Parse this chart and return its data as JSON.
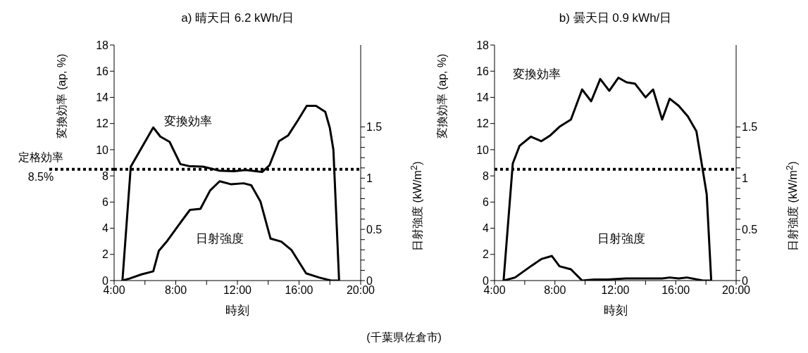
{
  "chart_data": [
    {
      "type": "line",
      "title": "a) 晴天日 6.2 kWh/日",
      "xlabel": "時刻",
      "ylabel": "変換効率 (ap, %)",
      "y2label": "日射強度 (kW/m$^{2}$)",
      "xlim": [
        4,
        20
      ],
      "xticks": [
        {
          "value": 4,
          "label": "4:00"
        },
        {
          "value": 6,
          "label": null
        },
        {
          "value": 8,
          "label": "8:00"
        },
        {
          "value": 10,
          "label": null
        },
        {
          "value": 12,
          "label": "12:00"
        },
        {
          "value": 14,
          "label": null
        },
        {
          "value": 16,
          "label": "16:00"
        },
        {
          "value": 18,
          "label": null
        },
        {
          "value": 20,
          "label": "20:00"
        }
      ],
      "ylim": [
        0,
        18
      ],
      "yticks": [
        0,
        2,
        4,
        6,
        8,
        10,
        12,
        14,
        16,
        18
      ],
      "y2lim": [
        0,
        2.3
      ],
      "y2ticks": [
        0,
        {
          "value": 0.1,
          "label": null
        },
        {
          "value": 0.2,
          "label": null
        },
        {
          "value": 0.3,
          "label": null
        },
        {
          "value": 0.4,
          "label": null
        },
        0.5,
        {
          "value": 0.6,
          "label": null
        },
        {
          "value": 0.7,
          "label": null
        },
        {
          "value": 0.8,
          "label": null
        },
        {
          "value": 0.9,
          "label": null
        },
        1,
        {
          "value": 1.1,
          "label": null
        },
        {
          "value": 1.2,
          "label": null
        },
        {
          "value": 1.3,
          "label": null
        },
        {
          "value": 1.4,
          "label": null
        },
        1.5
      ],
      "series": [
        {
          "name": "変換効率",
          "color": "#000000",
          "x": [
            4.54,
            5.08,
            6.54,
            7.0,
            7.6,
            8.3,
            8.85,
            9.77,
            10.85,
            11.77,
            12.54,
            13.6,
            14.08,
            14.7,
            15.3,
            15.9,
            16.5,
            17.1,
            17.7,
            18.0,
            18.23,
            18.6
          ],
          "values": [
            0,
            8.7,
            11.7,
            11.0,
            10.6,
            8.9,
            8.75,
            8.7,
            8.4,
            8.35,
            8.45,
            8.3,
            8.8,
            10.65,
            11.1,
            12.2,
            13.35,
            13.35,
            12.9,
            11.65,
            10.0,
            0
          ]
        },
        {
          "name": "日射強度",
          "color": "#000000",
          "axis": "y2",
          "x": [
            4.54,
            5.0,
            5.77,
            6.54,
            6.9,
            7.46,
            8.23,
            8.92,
            9.6,
            10.23,
            10.85,
            11.6,
            12.4,
            12.9,
            13.5,
            14.15,
            14.85,
            15.5,
            16.46,
            17.3,
            18.08,
            18.5
          ],
          "values": [
            0,
            0.02,
            0.06,
            0.09,
            0.29,
            0.39,
            0.55,
            0.69,
            0.7,
            0.88,
            0.97,
            0.94,
            0.95,
            0.93,
            0.77,
            0.41,
            0.38,
            0.3,
            0.07,
            0.03,
            0,
            0
          ]
        }
      ],
      "ref_lines": [
        {
          "axis": "y",
          "value": 8.5,
          "label": "定格効率 8.5%",
          "color": "#000000",
          "line_style": "dotted"
        }
      ],
      "annotations": [
        "(千葉県佐倉市)"
      ]
    },
    {
      "type": "line",
      "title": "b) 曇天日 0.9 kWh/日",
      "xlabel": "時刻",
      "ylabel": "変換効率 (ap, %)",
      "y2label": "日射強度 (kW/m$^{2}$)",
      "xlim": [
        4,
        20
      ],
      "xticks": [
        {
          "value": 4,
          "label": "4:00"
        },
        {
          "value": 6,
          "label": null
        },
        {
          "value": 8,
          "label": "8:00"
        },
        {
          "value": 10,
          "label": null
        },
        {
          "value": 12,
          "label": "12:00"
        },
        {
          "value": 14,
          "label": null
        },
        {
          "value": 16,
          "label": "16:00"
        },
        {
          "value": 18,
          "label": null
        },
        {
          "value": 20,
          "label": "20:00"
        }
      ],
      "ylim": [
        0,
        18
      ],
      "yticks": [
        0,
        2,
        4,
        6,
        8,
        10,
        12,
        14,
        16,
        18
      ],
      "y2lim": [
        0,
        2.3
      ],
      "y2ticks": [
        0,
        {
          "value": 0.1,
          "label": null
        },
        {
          "value": 0.2,
          "label": null
        },
        {
          "value": 0.3,
          "label": null
        },
        {
          "value": 0.4,
          "label": null
        },
        0.5,
        {
          "value": 0.6,
          "label": null
        },
        {
          "value": 0.7,
          "label": null
        },
        {
          "value": 0.8,
          "label": null
        },
        {
          "value": 0.9,
          "label": null
        },
        1,
        {
          "value": 1.1,
          "label": null
        },
        {
          "value": 1.2,
          "label": null
        },
        {
          "value": 1.3,
          "label": null
        },
        {
          "value": 1.4,
          "label": null
        },
        1.5
      ],
      "series": [
        {
          "name": "変換効率",
          "color": "#000000",
          "x": [
            4.6,
            5.21,
            5.66,
            6.41,
            7.1,
            7.7,
            8.3,
            9.06,
            9.8,
            10.4,
            11.0,
            11.6,
            12.2,
            12.74,
            13.3,
            14.0,
            14.5,
            15.1,
            15.6,
            16.2,
            16.8,
            17.37,
            18.05,
            18.35
          ],
          "values": [
            0,
            8.95,
            10.3,
            11.0,
            10.65,
            11.1,
            11.75,
            12.3,
            14.6,
            13.7,
            15.4,
            14.5,
            15.5,
            15.15,
            15.05,
            14.0,
            14.6,
            12.3,
            13.9,
            13.35,
            12.55,
            11.4,
            6.6,
            0
          ]
        },
        {
          "name": "日射強度",
          "color": "#000000",
          "axis": "y2",
          "x": [
            4.6,
            5.36,
            6.5,
            7.1,
            7.8,
            8.3,
            9.06,
            9.8,
            10.6,
            11.5,
            12.7,
            15.1,
            15.6,
            16.2,
            16.75,
            17.8,
            18.35
          ],
          "values": [
            0,
            0.03,
            0.15,
            0.21,
            0.24,
            0.14,
            0.11,
            0,
            0.01,
            0.01,
            0.02,
            0.02,
            0.03,
            0.02,
            0.03,
            0,
            0
          ]
        }
      ],
      "ref_lines": [
        {
          "axis": "y",
          "value": 8.5,
          "color": "#000000",
          "line_style": "dotted"
        }
      ]
    }
  ]
}
